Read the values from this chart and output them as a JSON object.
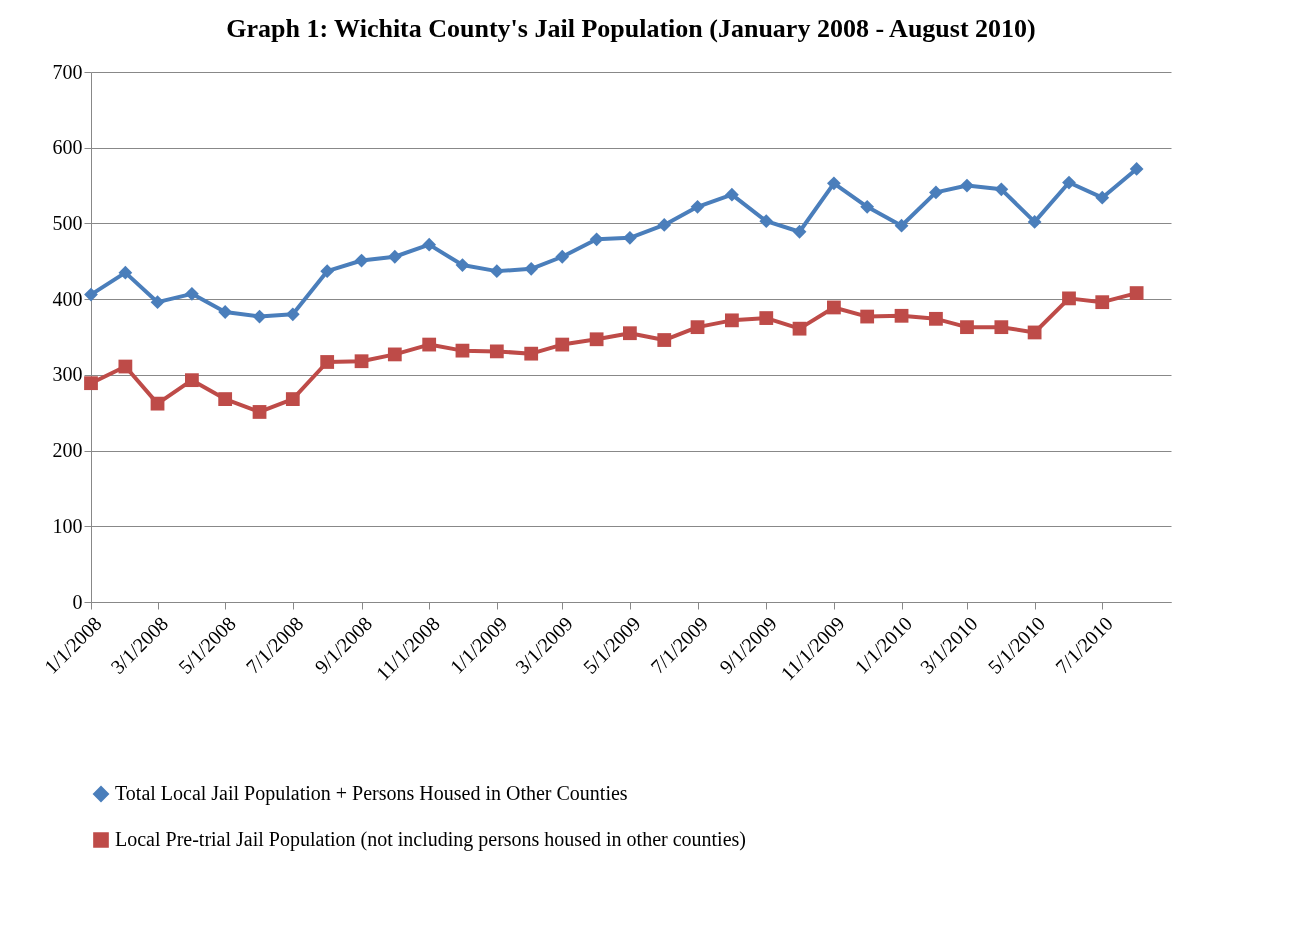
{
  "chart_data": {
    "type": "line",
    "title": "Graph 1: Wichita County's Jail Population (January 2008 - August 2010)",
    "x": [
      "2008-01",
      "2008-02",
      "2008-03",
      "2008-04",
      "2008-05",
      "2008-06",
      "2008-07",
      "2008-08",
      "2008-09",
      "2008-10",
      "2008-11",
      "2008-12",
      "2009-01",
      "2009-02",
      "2009-03",
      "2009-04",
      "2009-05",
      "2009-06",
      "2009-07",
      "2009-08",
      "2009-09",
      "2009-10",
      "2009-11",
      "2009-12",
      "2010-01",
      "2010-02",
      "2010-03",
      "2010-04",
      "2010-05",
      "2010-06",
      "2010-07",
      "2010-08"
    ],
    "series": [
      {
        "name": "Total Local Jail Population + Persons Housed in Other Counties",
        "color": "#4a7ebb",
        "marker": "diamond",
        "values": [
          406,
          435,
          396,
          407,
          383,
          377,
          380,
          437,
          451,
          456,
          472,
          445,
          437,
          440,
          456,
          479,
          481,
          498,
          522,
          538,
          503,
          489,
          553,
          522,
          497,
          541,
          550,
          545,
          502,
          554,
          534,
          572
        ]
      },
      {
        "name": "Local Pre-trial Jail Population (not including persons housed in other counties)",
        "color": "#be4b48",
        "marker": "square",
        "values": [
          289,
          311,
          262,
          293,
          268,
          251,
          268,
          317,
          318,
          327,
          340,
          332,
          331,
          328,
          340,
          347,
          355,
          346,
          363,
          372,
          375,
          361,
          389,
          377,
          378,
          374,
          363,
          363,
          356,
          401,
          396,
          408
        ]
      }
    ],
    "xlim": [
      "2008-01-01",
      "2010-09-01"
    ],
    "xticks": [
      {
        "value": "2008-01-01",
        "label": "1/1/2008"
      },
      {
        "value": "2008-03-01",
        "label": "3/1/2008"
      },
      {
        "value": "2008-05-01",
        "label": "5/1/2008"
      },
      {
        "value": "2008-07-01",
        "label": "7/1/2008"
      },
      {
        "value": "2008-09-01",
        "label": "9/1/2008"
      },
      {
        "value": "2008-11-01",
        "label": "11/1/2008"
      },
      {
        "value": "2009-01-01",
        "label": "1/1/2009"
      },
      {
        "value": "2009-03-01",
        "label": "3/1/2009"
      },
      {
        "value": "2009-05-01",
        "label": "5/1/2009"
      },
      {
        "value": "2009-07-01",
        "label": "7/1/2009"
      },
      {
        "value": "2009-09-01",
        "label": "9/1/2009"
      },
      {
        "value": "2009-11-01",
        "label": "11/1/2009"
      },
      {
        "value": "2010-01-01",
        "label": "1/1/2010"
      },
      {
        "value": "2010-03-01",
        "label": "3/1/2010"
      },
      {
        "value": "2010-05-01",
        "label": "5/1/2010"
      },
      {
        "value": "2010-07-01",
        "label": "7/1/2010"
      }
    ],
    "ylim": [
      0,
      700
    ],
    "yticks": [
      0,
      100,
      200,
      300,
      400,
      500,
      600,
      700
    ],
    "grid": "y",
    "legend": "bottom"
  }
}
